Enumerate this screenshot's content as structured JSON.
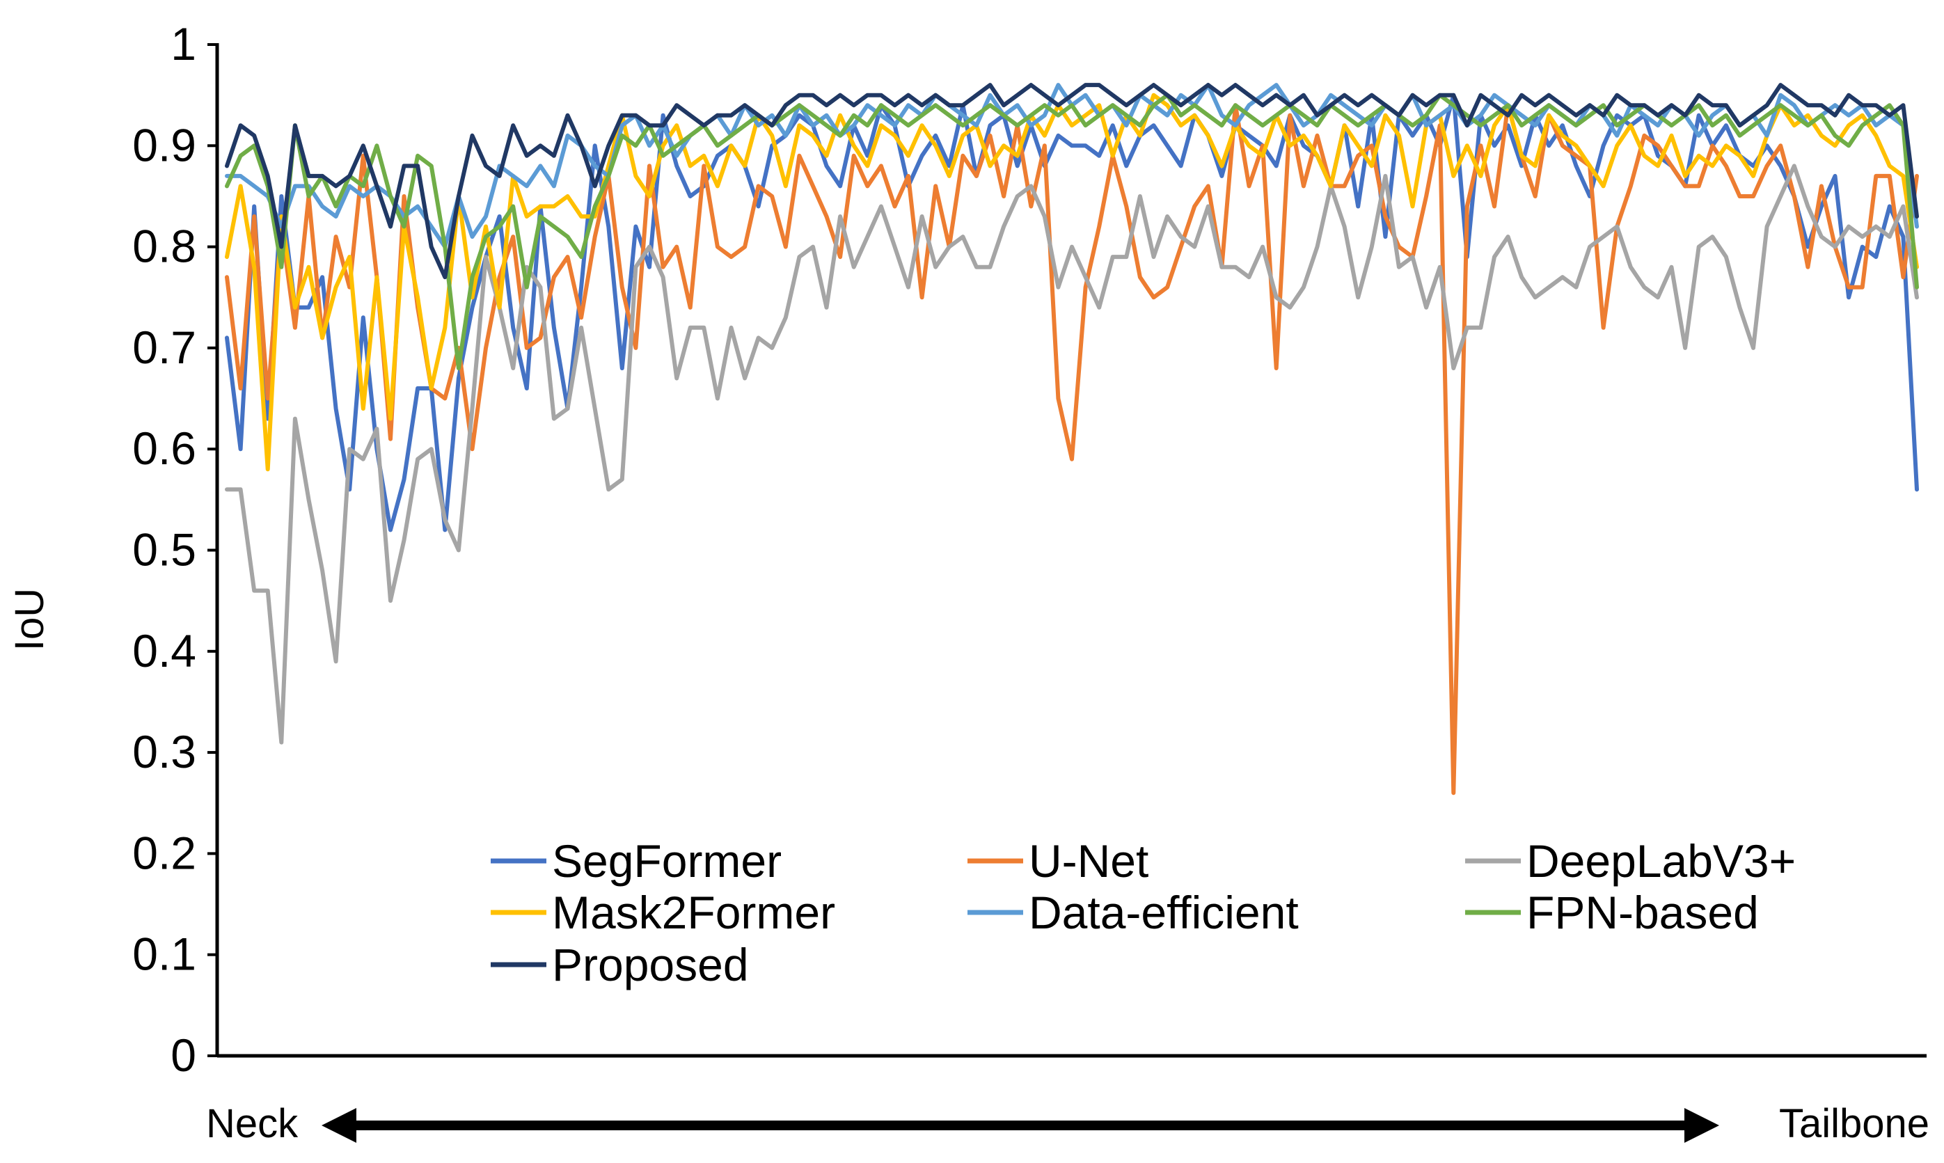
{
  "chart_data": {
    "type": "line",
    "title": "",
    "xlabel": "",
    "ylabel": "IoU",
    "ylim": [
      0,
      1
    ],
    "yticks": [
      "0",
      "0.1",
      "0.2",
      "0.3",
      "0.4",
      "0.5",
      "0.6",
      "0.7",
      "0.8",
      "0.9",
      "1"
    ],
    "grid": false,
    "legend_position": "bottom-center",
    "x_direction": {
      "start_label": "Neck",
      "end_label": "Tailbone"
    },
    "series": [
      {
        "name": "SegFormer",
        "color": "#4472C4",
        "values": [
          0.71,
          0.6,
          0.84,
          0.63,
          0.85,
          0.74,
          0.74,
          0.77,
          0.64,
          0.56,
          0.73,
          0.6,
          0.52,
          0.57,
          0.66,
          0.66,
          0.52,
          0.67,
          0.74,
          0.79,
          0.83,
          0.72,
          0.66,
          0.84,
          0.72,
          0.64,
          0.76,
          0.9,
          0.82,
          0.68,
          0.82,
          0.78,
          0.93,
          0.88,
          0.85,
          0.86,
          0.89,
          0.9,
          0.88,
          0.84,
          0.9,
          0.91,
          0.93,
          0.92,
          0.88,
          0.86,
          0.92,
          0.89,
          0.94,
          0.92,
          0.86,
          0.89,
          0.91,
          0.88,
          0.94,
          0.87,
          0.92,
          0.93,
          0.88,
          0.92,
          0.88,
          0.91,
          0.9,
          0.9,
          0.89,
          0.92,
          0.88,
          0.91,
          0.92,
          0.9,
          0.88,
          0.93,
          0.91,
          0.87,
          0.92,
          0.91,
          0.9,
          0.88,
          0.93,
          0.9,
          0.89,
          0.86,
          0.92,
          0.84,
          0.93,
          0.81,
          0.93,
          0.91,
          0.93,
          0.9,
          0.95,
          0.79,
          0.93,
          0.9,
          0.92,
          0.88,
          0.93,
          0.9,
          0.92,
          0.88,
          0.85,
          0.9,
          0.93,
          0.92,
          0.93,
          0.89,
          0.88,
          0.86,
          0.93,
          0.9,
          0.92,
          0.89,
          0.88,
          0.9,
          0.88,
          0.85,
          0.8,
          0.84,
          0.87,
          0.75,
          0.8,
          0.79,
          0.84,
          0.81,
          0.56
        ]
      },
      {
        "name": "U-Net",
        "color": "#ED7D31",
        "values": [
          0.77,
          0.66,
          0.83,
          0.65,
          0.82,
          0.72,
          0.85,
          0.71,
          0.81,
          0.76,
          0.89,
          0.77,
          0.61,
          0.85,
          0.74,
          0.66,
          0.65,
          0.7,
          0.6,
          0.7,
          0.77,
          0.81,
          0.7,
          0.71,
          0.77,
          0.79,
          0.73,
          0.81,
          0.87,
          0.76,
          0.7,
          0.88,
          0.78,
          0.8,
          0.74,
          0.88,
          0.8,
          0.79,
          0.8,
          0.86,
          0.85,
          0.8,
          0.89,
          0.86,
          0.83,
          0.79,
          0.89,
          0.86,
          0.88,
          0.84,
          0.87,
          0.75,
          0.86,
          0.8,
          0.89,
          0.87,
          0.91,
          0.85,
          0.92,
          0.84,
          0.9,
          0.65,
          0.59,
          0.76,
          0.82,
          0.89,
          0.84,
          0.77,
          0.75,
          0.76,
          0.8,
          0.84,
          0.86,
          0.78,
          0.94,
          0.86,
          0.9,
          0.68,
          0.93,
          0.86,
          0.91,
          0.86,
          0.86,
          0.89,
          0.9,
          0.83,
          0.8,
          0.79,
          0.85,
          0.92,
          0.26,
          0.84,
          0.9,
          0.84,
          0.94,
          0.89,
          0.85,
          0.93,
          0.9,
          0.89,
          0.88,
          0.72,
          0.82,
          0.86,
          0.91,
          0.9,
          0.88,
          0.86,
          0.86,
          0.9,
          0.88,
          0.85,
          0.85,
          0.88,
          0.9,
          0.85,
          0.78,
          0.86,
          0.8,
          0.76,
          0.76,
          0.87,
          0.87,
          0.77,
          0.87
        ]
      },
      {
        "name": "DeepLabV3+",
        "color": "#A5A5A5",
        "values": [
          0.56,
          0.56,
          0.46,
          0.46,
          0.31,
          0.63,
          0.55,
          0.48,
          0.39,
          0.6,
          0.59,
          0.62,
          0.45,
          0.51,
          0.59,
          0.6,
          0.53,
          0.5,
          0.64,
          0.79,
          0.74,
          0.68,
          0.78,
          0.76,
          0.63,
          0.64,
          0.72,
          0.64,
          0.56,
          0.57,
          0.78,
          0.8,
          0.77,
          0.67,
          0.72,
          0.72,
          0.65,
          0.72,
          0.67,
          0.71,
          0.7,
          0.73,
          0.79,
          0.8,
          0.74,
          0.83,
          0.78,
          0.81,
          0.84,
          0.8,
          0.76,
          0.83,
          0.78,
          0.8,
          0.81,
          0.78,
          0.78,
          0.82,
          0.85,
          0.86,
          0.83,
          0.76,
          0.8,
          0.77,
          0.74,
          0.79,
          0.79,
          0.85,
          0.79,
          0.83,
          0.81,
          0.8,
          0.84,
          0.78,
          0.78,
          0.77,
          0.8,
          0.75,
          0.74,
          0.76,
          0.8,
          0.86,
          0.82,
          0.75,
          0.8,
          0.87,
          0.78,
          0.79,
          0.74,
          0.78,
          0.68,
          0.72,
          0.72,
          0.79,
          0.81,
          0.77,
          0.75,
          0.76,
          0.77,
          0.76,
          0.8,
          0.81,
          0.82,
          0.78,
          0.76,
          0.75,
          0.78,
          0.7,
          0.8,
          0.81,
          0.79,
          0.74,
          0.7,
          0.82,
          0.85,
          0.88,
          0.84,
          0.81,
          0.8,
          0.82,
          0.81,
          0.82,
          0.81,
          0.84,
          0.75
        ]
      },
      {
        "name": "Mask2Former",
        "color": "#FFC000",
        "values": [
          0.79,
          0.86,
          0.78,
          0.58,
          0.83,
          0.74,
          0.78,
          0.71,
          0.76,
          0.79,
          0.64,
          0.77,
          0.63,
          0.82,
          0.75,
          0.66,
          0.72,
          0.85,
          0.75,
          0.82,
          0.74,
          0.87,
          0.83,
          0.84,
          0.84,
          0.85,
          0.83,
          0.83,
          0.88,
          0.93,
          0.87,
          0.85,
          0.9,
          0.92,
          0.88,
          0.89,
          0.86,
          0.9,
          0.88,
          0.93,
          0.91,
          0.86,
          0.92,
          0.91,
          0.89,
          0.93,
          0.9,
          0.88,
          0.92,
          0.91,
          0.89,
          0.92,
          0.9,
          0.87,
          0.91,
          0.92,
          0.88,
          0.9,
          0.89,
          0.93,
          0.91,
          0.94,
          0.92,
          0.93,
          0.94,
          0.89,
          0.93,
          0.91,
          0.95,
          0.94,
          0.92,
          0.93,
          0.91,
          0.88,
          0.92,
          0.9,
          0.89,
          0.93,
          0.9,
          0.91,
          0.89,
          0.86,
          0.92,
          0.9,
          0.88,
          0.93,
          0.91,
          0.84,
          0.92,
          0.93,
          0.87,
          0.9,
          0.87,
          0.92,
          0.94,
          0.89,
          0.88,
          0.93,
          0.91,
          0.9,
          0.88,
          0.86,
          0.9,
          0.92,
          0.89,
          0.88,
          0.91,
          0.87,
          0.89,
          0.88,
          0.9,
          0.89,
          0.87,
          0.91,
          0.94,
          0.92,
          0.93,
          0.91,
          0.9,
          0.92,
          0.93,
          0.91,
          0.88,
          0.87,
          0.78
        ]
      },
      {
        "name": "Data-efficient",
        "color": "#5B9BD5",
        "values": [
          0.87,
          0.87,
          0.86,
          0.85,
          0.82,
          0.86,
          0.86,
          0.84,
          0.83,
          0.86,
          0.85,
          0.86,
          0.85,
          0.83,
          0.84,
          0.82,
          0.8,
          0.85,
          0.81,
          0.83,
          0.88,
          0.87,
          0.86,
          0.88,
          0.86,
          0.91,
          0.9,
          0.88,
          0.87,
          0.92,
          0.93,
          0.9,
          0.92,
          0.89,
          0.91,
          0.92,
          0.93,
          0.91,
          0.94,
          0.92,
          0.93,
          0.91,
          0.94,
          0.92,
          0.93,
          0.91,
          0.92,
          0.94,
          0.93,
          0.92,
          0.94,
          0.93,
          0.95,
          0.94,
          0.93,
          0.92,
          0.95,
          0.93,
          0.94,
          0.92,
          0.93,
          0.96,
          0.94,
          0.95,
          0.93,
          0.94,
          0.92,
          0.95,
          0.94,
          0.93,
          0.95,
          0.94,
          0.96,
          0.93,
          0.92,
          0.94,
          0.95,
          0.96,
          0.94,
          0.92,
          0.93,
          0.95,
          0.94,
          0.93,
          0.92,
          0.94,
          0.93,
          0.95,
          0.92,
          0.93,
          0.94,
          0.92,
          0.93,
          0.95,
          0.94,
          0.93,
          0.92,
          0.94,
          0.93,
          0.92,
          0.94,
          0.93,
          0.91,
          0.94,
          0.93,
          0.92,
          0.94,
          0.93,
          0.91,
          0.93,
          0.94,
          0.92,
          0.93,
          0.91,
          0.95,
          0.94,
          0.92,
          0.93,
          0.94,
          0.93,
          0.94,
          0.92,
          0.93,
          0.92,
          0.82
        ]
      },
      {
        "name": "FPN-based",
        "color": "#70AD47",
        "values": [
          0.86,
          0.89,
          0.9,
          0.86,
          0.78,
          0.92,
          0.85,
          0.87,
          0.84,
          0.87,
          0.86,
          0.9,
          0.85,
          0.82,
          0.89,
          0.88,
          0.8,
          0.68,
          0.77,
          0.81,
          0.82,
          0.84,
          0.76,
          0.83,
          0.82,
          0.81,
          0.79,
          0.84,
          0.87,
          0.91,
          0.9,
          0.92,
          0.89,
          0.9,
          0.91,
          0.92,
          0.9,
          0.91,
          0.92,
          0.93,
          0.92,
          0.93,
          0.94,
          0.93,
          0.92,
          0.91,
          0.93,
          0.92,
          0.94,
          0.93,
          0.92,
          0.93,
          0.94,
          0.93,
          0.92,
          0.93,
          0.94,
          0.93,
          0.92,
          0.93,
          0.94,
          0.93,
          0.94,
          0.92,
          0.93,
          0.94,
          0.93,
          0.92,
          0.94,
          0.95,
          0.93,
          0.94,
          0.93,
          0.92,
          0.94,
          0.93,
          0.92,
          0.93,
          0.94,
          0.93,
          0.92,
          0.94,
          0.93,
          0.92,
          0.93,
          0.94,
          0.93,
          0.92,
          0.93,
          0.95,
          0.94,
          0.93,
          0.92,
          0.93,
          0.94,
          0.92,
          0.93,
          0.94,
          0.93,
          0.92,
          0.93,
          0.94,
          0.92,
          0.93,
          0.94,
          0.93,
          0.92,
          0.93,
          0.94,
          0.92,
          0.93,
          0.91,
          0.92,
          0.93,
          0.94,
          0.93,
          0.92,
          0.93,
          0.91,
          0.9,
          0.92,
          0.93,
          0.94,
          0.92,
          0.76
        ]
      },
      {
        "name": "Proposed",
        "color": "#203864",
        "values": [
          0.88,
          0.92,
          0.91,
          0.87,
          0.8,
          0.92,
          0.87,
          0.87,
          0.86,
          0.87,
          0.9,
          0.86,
          0.82,
          0.88,
          0.88,
          0.8,
          0.77,
          0.85,
          0.91,
          0.88,
          0.87,
          0.92,
          0.89,
          0.9,
          0.89,
          0.93,
          0.9,
          0.86,
          0.9,
          0.93,
          0.93,
          0.92,
          0.92,
          0.94,
          0.93,
          0.92,
          0.93,
          0.93,
          0.94,
          0.93,
          0.92,
          0.94,
          0.95,
          0.95,
          0.94,
          0.95,
          0.94,
          0.95,
          0.95,
          0.94,
          0.95,
          0.94,
          0.95,
          0.94,
          0.94,
          0.95,
          0.96,
          0.94,
          0.95,
          0.96,
          0.95,
          0.94,
          0.95,
          0.96,
          0.96,
          0.95,
          0.94,
          0.95,
          0.96,
          0.95,
          0.94,
          0.95,
          0.96,
          0.95,
          0.96,
          0.95,
          0.94,
          0.95,
          0.94,
          0.95,
          0.93,
          0.94,
          0.95,
          0.94,
          0.95,
          0.94,
          0.93,
          0.95,
          0.94,
          0.95,
          0.95,
          0.92,
          0.95,
          0.94,
          0.93,
          0.95,
          0.94,
          0.95,
          0.94,
          0.93,
          0.94,
          0.93,
          0.95,
          0.94,
          0.94,
          0.93,
          0.94,
          0.93,
          0.95,
          0.94,
          0.94,
          0.92,
          0.93,
          0.94,
          0.96,
          0.95,
          0.94,
          0.94,
          0.93,
          0.95,
          0.94,
          0.94,
          0.93,
          0.94,
          0.83
        ]
      }
    ]
  }
}
